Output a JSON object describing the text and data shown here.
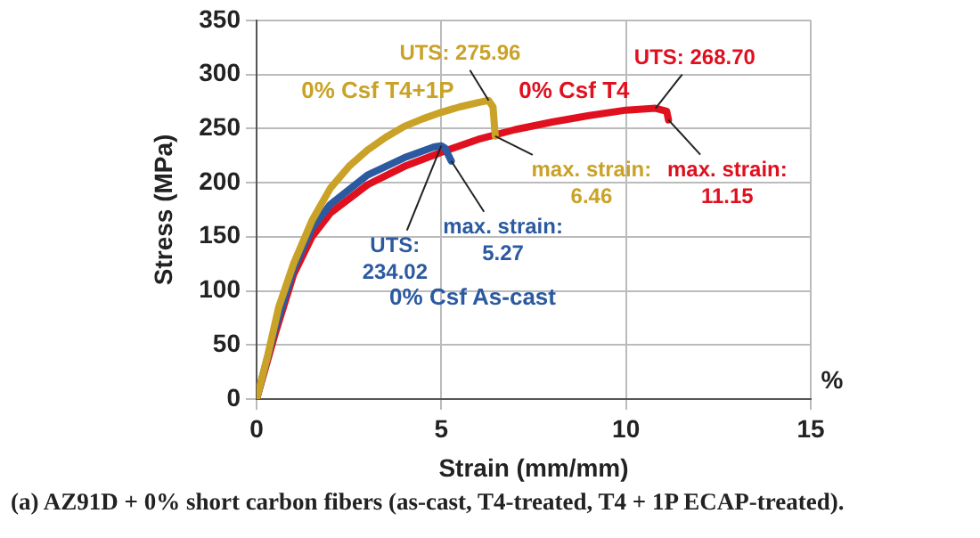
{
  "chart_data": {
    "type": "line",
    "xlabel": "Strain (mm/mm)",
    "ylabel": "Stress (MPa)",
    "xlim": [
      0,
      15
    ],
    "xticks": [
      0,
      5,
      10,
      15
    ],
    "ylim": [
      0,
      350
    ],
    "yticks": [
      0,
      50,
      100,
      150,
      200,
      250,
      300,
      350
    ],
    "grid": true,
    "legend": false,
    "marker": "none",
    "line_style": "solid",
    "series": [
      {
        "name": "0% Csf T4+1P",
        "color": "#c9a227",
        "x": [
          0,
          0.3,
          0.6,
          1,
          1.5,
          2,
          2.5,
          3,
          3.5,
          4,
          4.5,
          5,
          5.5,
          6,
          6.28,
          6.4,
          6.46
        ],
        "values": [
          0,
          40,
          85,
          125,
          165,
          195,
          215,
          230,
          242,
          252,
          259,
          265,
          270,
          274,
          275.96,
          270,
          243
        ]
      },
      {
        "name": "0% Csf As-cast",
        "color": "#2c5aa0",
        "x": [
          0,
          0.5,
          1,
          1.5,
          2,
          3,
          4,
          4.8,
          5,
          5.1,
          5.27
        ],
        "values": [
          0,
          65,
          120,
          158,
          180,
          207,
          223,
          233,
          234.02,
          232,
          220
        ]
      },
      {
        "name": "0% Csf T4",
        "color": "#e0101e",
        "x": [
          0,
          0.5,
          1,
          1.5,
          2,
          3,
          4,
          5,
          6,
          7,
          8,
          9,
          10,
          10.8,
          11.1,
          11.15
        ],
        "values": [
          0,
          60,
          115,
          150,
          172,
          198,
          215,
          228,
          240,
          249,
          256,
          262,
          267,
          268.7,
          266,
          258
        ]
      }
    ],
    "annotations": [
      {
        "text": "UTS: 275.96",
        "x": 6.28,
        "y": 275.96
      },
      {
        "text": "max. strain:\n6.46",
        "x": 6.46,
        "y": 243
      },
      {
        "text": "UTS: 268.70",
        "x": 10.8,
        "y": 268.7
      },
      {
        "text": "max. strain:\n11.15",
        "x": 11.15,
        "y": 258
      },
      {
        "text": "UTS:\n234.02",
        "x": 5,
        "y": 234.02
      },
      {
        "text": "max. strain:\n5.27",
        "x": 5.27,
        "y": 220
      },
      "%",
      "(a) AZ91D + 0% short carbon fibers (as-cast, T4-treated, T4 + 1P ECAP-treated)."
    ]
  }
}
